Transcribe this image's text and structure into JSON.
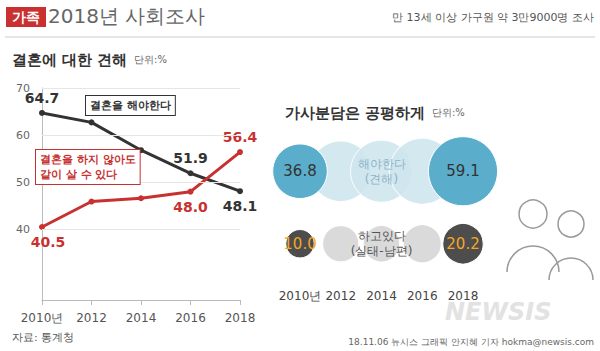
{
  "header": {
    "tag": "가족",
    "title": "2018년 사회조사",
    "note": "만 13세 이상 가구원 약 3만9000명 조사"
  },
  "chart_data": [
    {
      "type": "line",
      "title": "결혼에 대한 견해",
      "subtitle": "단위:%",
      "categories": [
        "2010년",
        "2012",
        "2014",
        "2016",
        "2018"
      ],
      "series": [
        {
          "name": "결혼을 해야한다",
          "color": "#333333",
          "marker": "circle",
          "values": [
            64.7,
            62.7,
            56.8,
            51.9,
            48.1
          ],
          "value_labels": [
            "64.7",
            null,
            null,
            "51.9",
            "48.1"
          ]
        },
        {
          "name": "결혼을 하지 않아도\n같이 살 수 있다",
          "color": "#c8312f",
          "marker": "circle",
          "values": [
            40.5,
            45.9,
            46.6,
            48.0,
            56.4
          ],
          "value_labels": [
            "40.5",
            null,
            null,
            "48.0",
            "56.4"
          ]
        }
      ],
      "ylim": [
        25,
        70
      ],
      "yticks": [
        40,
        50,
        60,
        70
      ],
      "grid": true,
      "data_labels": true
    },
    {
      "type": "bubble",
      "title": "가사분담은 공평하게",
      "subtitle": "단위:%",
      "categories": [
        "2010년",
        "2012",
        "2014",
        "2016",
        "2018"
      ],
      "series": [
        {
          "name": "해야한다\n(견해)",
          "colors": [
            "#5aaecb",
            "#cfe5ee",
            "#cfe5ee",
            "#cfe5ee",
            "#5aaecb"
          ],
          "values": [
            36.8,
            45.3,
            47.5,
            53.5,
            59.1
          ],
          "value_labels": [
            "36.8",
            null,
            null,
            null,
            "59.1"
          ]
        },
        {
          "name": "하고있다\n(실태-남편)",
          "colors": [
            "#4d4d4d",
            "#d6d6d6",
            "#d6d6d6",
            "#d6d6d6",
            "#4d4d4d"
          ],
          "values": [
            10.0,
            16.1,
            16.4,
            17.8,
            20.2
          ],
          "value_labels": [
            "10.0",
            null,
            null,
            null,
            "20.2"
          ]
        }
      ],
      "data_labels": true,
      "tick_labels": "x"
    }
  ],
  "source": "자료: 통계청",
  "credit": "18.11.06 뉴시스 그래픽 안지혜 기자 hokma@newsis.com",
  "watermark": "NEWSIS"
}
